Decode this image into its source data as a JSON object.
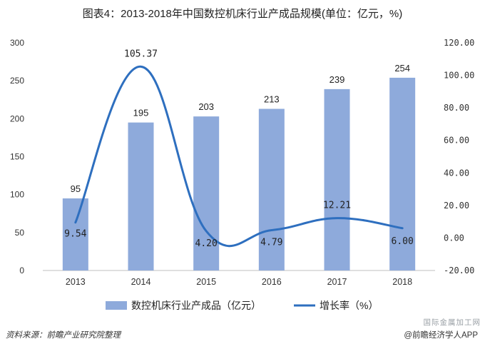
{
  "chart_data": {
    "type": "bar",
    "title": "图表4：2013-2018年中国数控机床行业产成品规模(单位：亿元，%)",
    "categories": [
      "2013",
      "2014",
      "2015",
      "2016",
      "2017",
      "2018"
    ],
    "series": [
      {
        "name": "数控机床行业产成品（亿元）",
        "type": "bar",
        "axis": "left",
        "values": [
          95,
          195,
          203,
          213,
          239,
          254
        ],
        "color": "#8eaadb"
      },
      {
        "name": "增长率（%）",
        "type": "line",
        "axis": "right",
        "values": [
          9.54,
          105.37,
          4.2,
          4.79,
          12.21,
          6.0
        ],
        "color": "#2e6fbf",
        "labels": [
          "9.54",
          "105.37",
          "4.20",
          "4.79",
          "12.21",
          "6.00"
        ]
      }
    ],
    "y_left": {
      "min": 0,
      "max": 300,
      "step": 50,
      "ticks": [
        "0",
        "50",
        "100",
        "150",
        "200",
        "250",
        "300"
      ]
    },
    "y_right": {
      "min": -20,
      "max": 120,
      "step": 20,
      "ticks": [
        "-20.00",
        "0.00",
        "20.00",
        "40.00",
        "60.00",
        "80.00",
        "100.00",
        "120.00"
      ]
    },
    "legend": {
      "placement": "bottom"
    },
    "grid": false
  },
  "footer": {
    "source": "资料来源：前瞻产业研究院整理",
    "brand": "@前瞻经济学人APP",
    "brand_sub": "国际金属加工网"
  }
}
